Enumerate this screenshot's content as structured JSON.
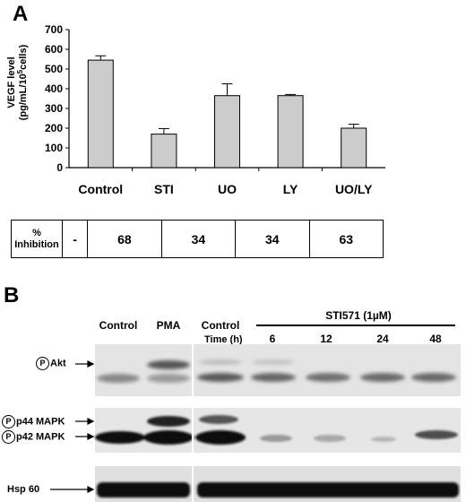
{
  "panel_a": {
    "letter": "A",
    "ylabel_line1": "VEGF level",
    "ylabel_line2": "(pg/mL/10",
    "ylabel_sup": "5",
    "ylabel_line2_end": "cells)"
  },
  "chart_data": {
    "type": "bar",
    "categories": [
      "Control",
      "STI",
      "UO",
      "LY",
      "UO/LY"
    ],
    "values": [
      545,
      170,
      365,
      365,
      200
    ],
    "errors": [
      22,
      28,
      60,
      6,
      20
    ],
    "title": "",
    "xlabel": "",
    "ylabel": "VEGF level (pg/mL/10^5 cells)",
    "ylim": [
      0,
      700
    ],
    "yticks": [
      0,
      100,
      200,
      300,
      400,
      500,
      600,
      700
    ],
    "bar_color": "#cccccc",
    "grid": false
  },
  "inhibition_table": {
    "label_line1": "%",
    "label_line2": "Inhibition",
    "values": [
      "-",
      "68",
      "34",
      "34",
      "63"
    ]
  },
  "panel_b": {
    "letter": "B",
    "columns": {
      "control1": "Control",
      "pma": "PMA",
      "control2": "Control",
      "treatment": "STI571 (1µM)",
      "time_label": "Time (h)",
      "times": [
        "6",
        "12",
        "24",
        "48"
      ]
    },
    "lanes": {
      "akt": "Akt",
      "p44": "p44 MAPK",
      "p42": "p42 MAPK",
      "hsp": "Hsp 60",
      "phospho_symbol": "P"
    }
  }
}
